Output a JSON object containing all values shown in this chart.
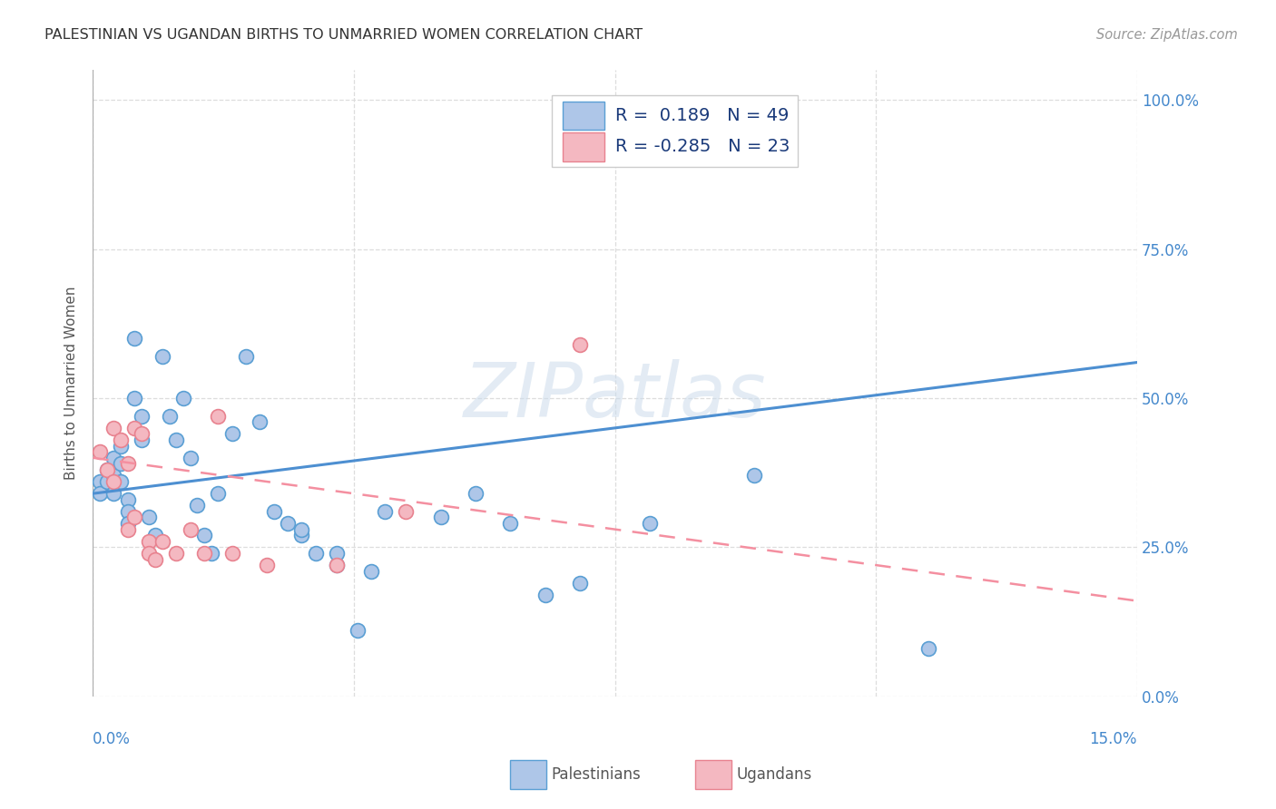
{
  "title": "PALESTINIAN VS UGANDAN BIRTHS TO UNMARRIED WOMEN CORRELATION CHART",
  "source": "Source: ZipAtlas.com",
  "ylabel": "Births to Unmarried Women",
  "xlim": [
    0.0,
    0.15
  ],
  "ylim": [
    0.0,
    1.05
  ],
  "pal_R": 0.189,
  "pal_N": 49,
  "uga_R": -0.285,
  "uga_N": 23,
  "pal_color": "#aec6e8",
  "uga_color": "#f4b8c1",
  "pal_edge_color": "#5a9fd4",
  "uga_edge_color": "#e8828f",
  "pal_line_color": "#4d8fd1",
  "uga_line_color": "#f48fa0",
  "background": "#ffffff",
  "grid_color": "#dddddd",
  "ytick_vals": [
    0.0,
    0.25,
    0.5,
    0.75,
    1.0
  ],
  "ytick_labels": [
    "0.0%",
    "25.0%",
    "50.0%",
    "75.0%",
    "100.0%"
  ],
  "xtick_left_label": "0.0%",
  "xtick_right_label": "15.0%",
  "pal_scatter_x": [
    0.001,
    0.001,
    0.002,
    0.002,
    0.003,
    0.003,
    0.003,
    0.004,
    0.004,
    0.004,
    0.005,
    0.005,
    0.005,
    0.006,
    0.006,
    0.007,
    0.007,
    0.008,
    0.009,
    0.01,
    0.011,
    0.012,
    0.013,
    0.014,
    0.015,
    0.016,
    0.017,
    0.018,
    0.02,
    0.022,
    0.024,
    0.026,
    0.028,
    0.03,
    0.032,
    0.035,
    0.038,
    0.042,
    0.05,
    0.055,
    0.06,
    0.065,
    0.07,
    0.08,
    0.095,
    0.03,
    0.035,
    0.04,
    0.12
  ],
  "pal_scatter_y": [
    0.36,
    0.34,
    0.38,
    0.36,
    0.4,
    0.37,
    0.34,
    0.42,
    0.39,
    0.36,
    0.33,
    0.31,
    0.29,
    0.6,
    0.5,
    0.47,
    0.43,
    0.3,
    0.27,
    0.57,
    0.47,
    0.43,
    0.5,
    0.4,
    0.32,
    0.27,
    0.24,
    0.34,
    0.44,
    0.57,
    0.46,
    0.31,
    0.29,
    0.27,
    0.24,
    0.22,
    0.11,
    0.31,
    0.3,
    0.34,
    0.29,
    0.17,
    0.19,
    0.29,
    0.37,
    0.28,
    0.24,
    0.21,
    0.08
  ],
  "uga_scatter_x": [
    0.001,
    0.002,
    0.003,
    0.003,
    0.004,
    0.005,
    0.005,
    0.006,
    0.006,
    0.007,
    0.008,
    0.008,
    0.009,
    0.01,
    0.012,
    0.014,
    0.016,
    0.018,
    0.02,
    0.025,
    0.035,
    0.045,
    0.07
  ],
  "uga_scatter_y": [
    0.41,
    0.38,
    0.45,
    0.36,
    0.43,
    0.39,
    0.28,
    0.45,
    0.3,
    0.44,
    0.26,
    0.24,
    0.23,
    0.26,
    0.24,
    0.28,
    0.24,
    0.47,
    0.24,
    0.22,
    0.22,
    0.31,
    0.59
  ],
  "pal_line_x0": 0.0,
  "pal_line_x1": 0.15,
  "pal_line_y0": 0.34,
  "pal_line_y1": 0.56,
  "uga_line_x0": 0.0,
  "uga_line_x1": 0.15,
  "uga_line_y0": 0.4,
  "uga_line_y1": 0.16,
  "title_fontsize": 11.5,
  "axis_label_fontsize": 11,
  "tick_fontsize": 12,
  "legend_fontsize": 14,
  "watermark_fontsize": 60,
  "source_fontsize": 10.5,
  "scatter_size": 130,
  "watermark_text": "ZIPatlas"
}
